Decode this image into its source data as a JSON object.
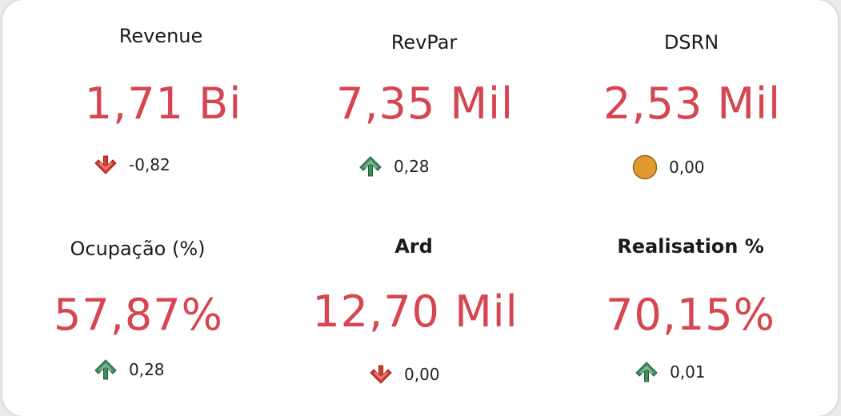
{
  "colors": {
    "value": "#d64550",
    "up": "#3f8f5a",
    "down": "#d83a2e",
    "neutral": "#e09a2e"
  },
  "kpis": [
    {
      "title": "Revenue",
      "value": "1,71 Bi",
      "delta": "-0,82",
      "trend_icon": "arrow-down-icon"
    },
    {
      "title": "RevPar",
      "value": "7,35 Mil",
      "delta": "0,28",
      "trend_icon": "arrow-up-icon"
    },
    {
      "title": "DSRN",
      "value": "2,53 Mil",
      "delta": "0,00",
      "trend_icon": "neutral-circle-icon"
    },
    {
      "title": "Ocupação (%)",
      "value": "57,87%",
      "delta": "0,28",
      "trend_icon": "arrow-up-icon"
    },
    {
      "title": "Ard",
      "value": "12,70 Mil",
      "delta": "0,00",
      "trend_icon": "arrow-down-icon"
    },
    {
      "title": "Realisation %",
      "value": "70,15%",
      "delta": "0,01",
      "trend_icon": "arrow-up-icon"
    }
  ]
}
